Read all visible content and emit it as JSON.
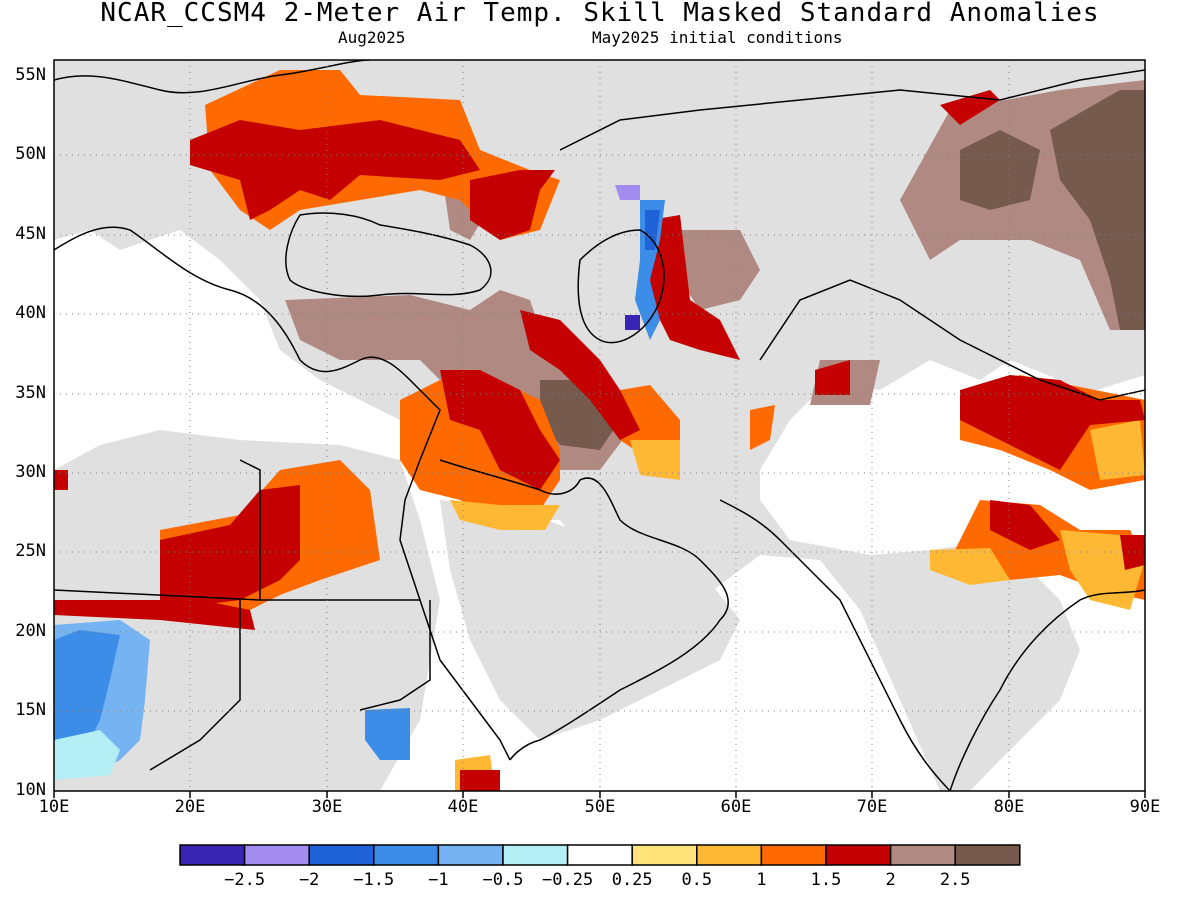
{
  "header": {
    "title": "NCAR_CCSM4 2-Meter Air Temp. Skill Masked Standard Anomalies",
    "valid_month": "Aug2025",
    "initial_conditions": "May2025 initial conditions"
  },
  "axes": {
    "lat_labels": [
      "55N",
      "50N",
      "45N",
      "40N",
      "35N",
      "30N",
      "25N",
      "20N",
      "15N",
      "10N"
    ],
    "lon_labels": [
      "10E",
      "20E",
      "30E",
      "40E",
      "50E",
      "60E",
      "70E",
      "80E",
      "90E"
    ],
    "lat_range": [
      10,
      56
    ],
    "lon_range": [
      10,
      90
    ]
  },
  "colorbar": {
    "labels": [
      "-2.5",
      "-2",
      "-1.5",
      "-1",
      "-0.5",
      "-0.25",
      "0.25",
      "0.5",
      "1",
      "1.5",
      "2",
      "2.5"
    ],
    "colors": [
      "#3a24b4",
      "#a38cf0",
      "#1f62d8",
      "#3c8de8",
      "#76b3f2",
      "#b3eef4",
      "#ffffff",
      "#ffe27a",
      "#ffb833",
      "#ff6a00",
      "#c40000",
      "#b08a82",
      "#765a4e"
    ]
  },
  "map": {
    "land_mask_color": "#e0e0e0",
    "grid": true
  }
}
